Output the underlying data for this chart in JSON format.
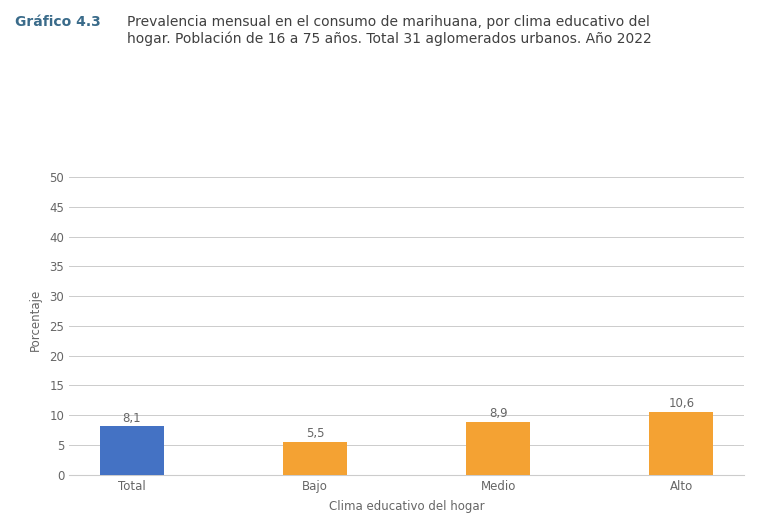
{
  "title_label": "Gráfico 4.3",
  "title_text": "Prevalencia mensual en el consumo de marihuana, por clima educativo del\nhogar. Población de 16 a 75 años. Total 31 aglomerados urbanos. Año 2022",
  "categories": [
    "Total",
    "Bajo",
    "Medio",
    "Alto"
  ],
  "values": [
    8.1,
    5.5,
    8.9,
    10.6
  ],
  "bar_colors": [
    "#4472C4",
    "#F4A233",
    "#F4A233",
    "#F4A233"
  ],
  "xlabel": "Clima educativo del hogar",
  "ylabel": "Porcentaje",
  "ylim": [
    0,
    52
  ],
  "yticks": [
    0,
    5,
    10,
    15,
    20,
    25,
    30,
    35,
    40,
    45,
    50
  ],
  "background_color": "#FFFFFF",
  "grid_color": "#CCCCCC",
  "bar_width": 0.35,
  "value_fontsize": 8.5,
  "xlabel_fontsize": 8.5,
  "ylabel_fontsize": 8.5,
  "tick_fontsize": 8.5,
  "title_label_color": "#3A6B8A",
  "title_text_color": "#404040"
}
